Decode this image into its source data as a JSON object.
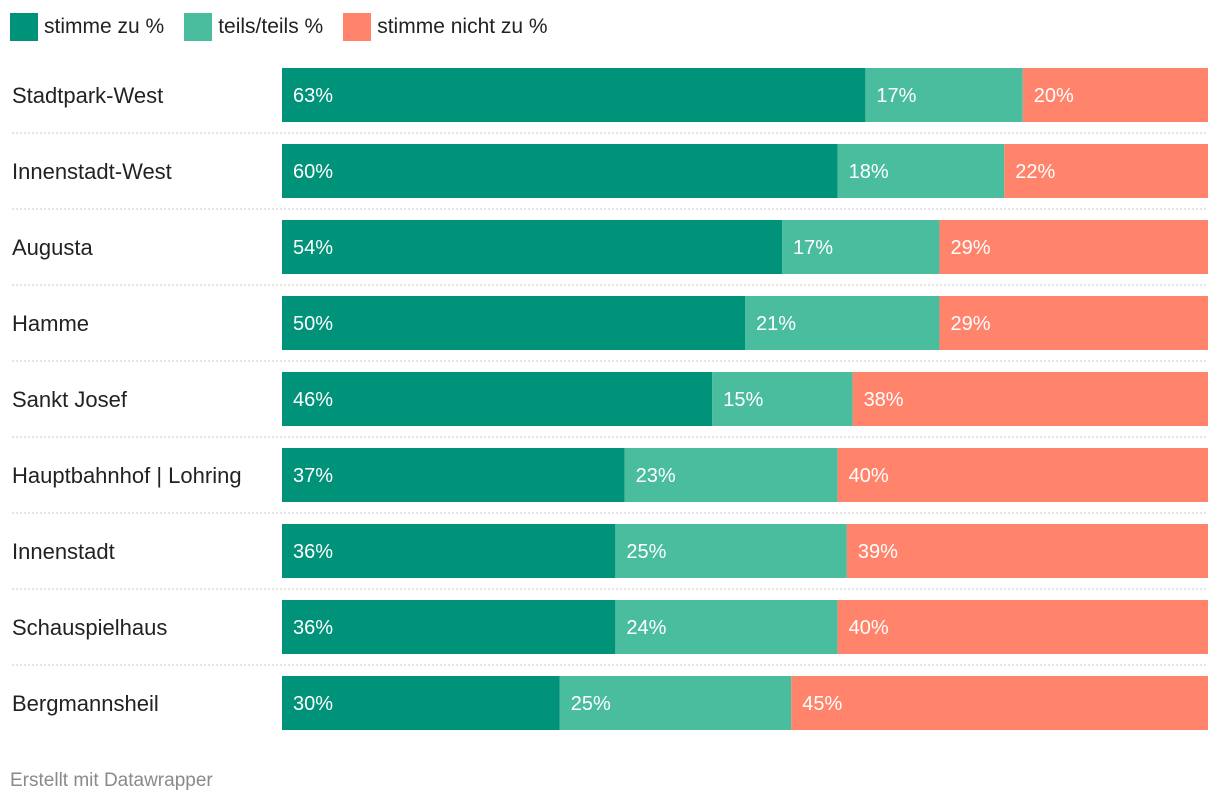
{
  "chart_data": {
    "type": "bar",
    "orientation": "horizontal",
    "stacked": true,
    "categories": [
      "Stadtpark-West",
      "Innenstadt-West",
      "Augusta",
      "Hamme",
      "Sankt Josef",
      "Hauptbahnhof | Lohring",
      "Innenstadt",
      "Schauspielhaus",
      "Bergmannsheil"
    ],
    "series": [
      {
        "name": "stimme zu %",
        "color": "#009379",
        "values": [
          63,
          60,
          54,
          50,
          46,
          37,
          36,
          36,
          30
        ]
      },
      {
        "name": "teils/teils %",
        "color": "#4bbd9f",
        "values": [
          17,
          18,
          17,
          21,
          15,
          23,
          25,
          24,
          25
        ]
      },
      {
        "name": "stimme nicht zu %",
        "color": "#ff846b",
        "values": [
          20,
          22,
          29,
          29,
          38,
          40,
          39,
          40,
          45
        ]
      }
    ],
    "value_suffix": "%",
    "legend_position": "top-left",
    "grid": false
  },
  "footer": "Erstellt mit Datawrapper"
}
